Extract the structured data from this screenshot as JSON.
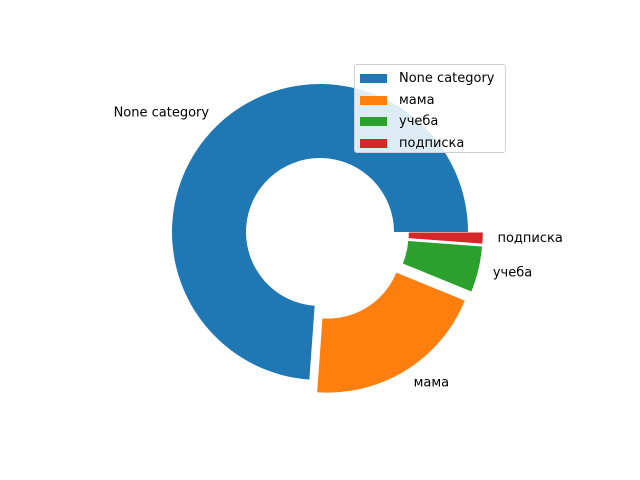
{
  "chart_data": {
    "type": "pie",
    "donut": true,
    "categories": [
      "None category",
      "мама",
      "учеба",
      "подписка"
    ],
    "values": [
      74,
      20,
      5,
      1.2
    ],
    "explode": [
      0,
      0.1,
      0.1,
      0.1
    ],
    "colors": [
      "#1f77b4",
      "#ff7f0e",
      "#2ca02c",
      "#d62728"
    ],
    "start_angle_deg": 0,
    "direction": "counterclockwise",
    "legend": {
      "placement": "upper-right",
      "entries": [
        "None category",
        "мама",
        "учеба",
        "подписка"
      ]
    },
    "title": ""
  }
}
